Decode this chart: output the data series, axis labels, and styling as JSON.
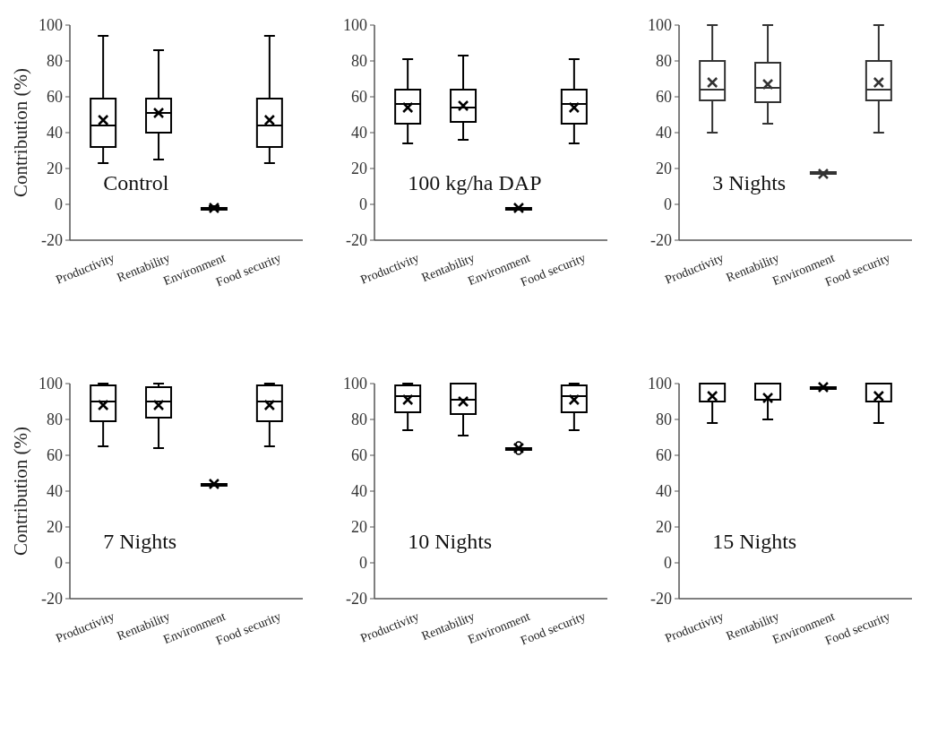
{
  "chart_data": [
    {
      "type": "box",
      "title": "Control",
      "ylabel": "Contribution (%)",
      "categories": [
        "Productivity",
        "Rentability",
        "Environment",
        "Food security"
      ],
      "ylim": [
        -20,
        100
      ],
      "yticks": [
        -20,
        0,
        20,
        40,
        60,
        80,
        100
      ],
      "color": "#000000",
      "boxes": [
        {
          "low": 23,
          "q1": 32,
          "median": 44,
          "q3": 59,
          "high": 94,
          "mean": 47
        },
        {
          "low": 25,
          "q1": 40,
          "median": 51,
          "q3": 59,
          "high": 86,
          "mean": 51
        },
        {
          "low": -3,
          "q1": -3,
          "median": -2,
          "q3": -2,
          "high": -1,
          "mean": -2
        },
        {
          "low": 23,
          "q1": 32,
          "median": 44,
          "q3": 59,
          "high": 94,
          "mean": 47
        }
      ]
    },
    {
      "type": "box",
      "title": "100 kg/ha DAP",
      "categories": [
        "Productivity",
        "Rentability",
        "Environment",
        "Food security"
      ],
      "ylim": [
        -20,
        100
      ],
      "yticks": [
        -20,
        0,
        20,
        40,
        60,
        80,
        100
      ],
      "color": "#000000",
      "boxes": [
        {
          "low": 34,
          "q1": 45,
          "median": 56,
          "q3": 64,
          "high": 81,
          "mean": 54
        },
        {
          "low": 36,
          "q1": 46,
          "median": 54,
          "q3": 64,
          "high": 83,
          "mean": 55
        },
        {
          "low": -3,
          "q1": -3,
          "median": -2,
          "q3": -2,
          "high": -2,
          "mean": -2
        },
        {
          "low": 34,
          "q1": 45,
          "median": 56,
          "q3": 64,
          "high": 81,
          "mean": 54
        }
      ]
    },
    {
      "type": "box",
      "title": "3 Nights",
      "categories": [
        "Productivity",
        "Rentability",
        "Environment",
        "Food security"
      ],
      "ylim": [
        -20,
        100
      ],
      "yticks": [
        -20,
        0,
        20,
        40,
        60,
        80,
        100
      ],
      "color": "#333333",
      "boxes": [
        {
          "low": 40,
          "q1": 58,
          "median": 64,
          "q3": 80,
          "high": 100,
          "mean": 68
        },
        {
          "low": 45,
          "q1": 57,
          "median": 65,
          "q3": 79,
          "high": 100,
          "mean": 67
        },
        {
          "low": 17,
          "q1": 17,
          "median": 18,
          "q3": 18,
          "high": 18,
          "mean": 17
        },
        {
          "low": 40,
          "q1": 58,
          "median": 64,
          "q3": 80,
          "high": 100,
          "mean": 68
        }
      ]
    },
    {
      "type": "box",
      "title": "7 Nights",
      "ylabel": "Contribution (%)",
      "categories": [
        "Productivity",
        "Rentability",
        "Environment",
        "Food security"
      ],
      "ylim": [
        -20,
        100
      ],
      "yticks": [
        -20,
        0,
        20,
        40,
        60,
        80,
        100
      ],
      "color": "#000000",
      "boxes": [
        {
          "low": 65,
          "q1": 79,
          "median": 90,
          "q3": 99,
          "high": 100,
          "mean": 88
        },
        {
          "low": 64,
          "q1": 81,
          "median": 90,
          "q3": 98,
          "high": 100,
          "mean": 88
        },
        {
          "low": 43,
          "q1": 43,
          "median": 44,
          "q3": 44,
          "high": 44,
          "mean": 44
        },
        {
          "low": 65,
          "q1": 79,
          "median": 90,
          "q3": 99,
          "high": 100,
          "mean": 88
        }
      ]
    },
    {
      "type": "box",
      "title": "10 Nights",
      "categories": [
        "Productivity",
        "Rentability",
        "Environment",
        "Food security"
      ],
      "ylim": [
        -20,
        100
      ],
      "yticks": [
        -20,
        0,
        20,
        40,
        60,
        80,
        100
      ],
      "color": "#000000",
      "boxes": [
        {
          "low": 74,
          "q1": 84,
          "median": 93,
          "q3": 99,
          "high": 100,
          "mean": 91
        },
        {
          "low": 71,
          "q1": 83,
          "median": 91,
          "q3": 100,
          "high": 100,
          "mean": 90
        },
        {
          "low": 63,
          "q1": 63,
          "median": 64,
          "q3": 64,
          "high": 64,
          "mean": 64,
          "outliers": [
            62,
            66
          ]
        },
        {
          "low": 74,
          "q1": 84,
          "median": 93,
          "q3": 99,
          "high": 100,
          "mean": 91
        }
      ]
    },
    {
      "type": "box",
      "title": "15 Nights",
      "categories": [
        "Productivity",
        "Rentability",
        "Environment",
        "Food security"
      ],
      "ylim": [
        -20,
        100
      ],
      "yticks": [
        -20,
        0,
        20,
        40,
        60,
        80,
        100
      ],
      "color": "#000000",
      "boxes": [
        {
          "low": 78,
          "q1": 90,
          "median": 100,
          "q3": 100,
          "high": 100,
          "mean": 93
        },
        {
          "low": 80,
          "q1": 91,
          "median": 100,
          "q3": 100,
          "high": 100,
          "mean": 92
        },
        {
          "low": 97,
          "q1": 97,
          "median": 98,
          "q3": 98,
          "high": 98,
          "mean": 98
        },
        {
          "low": 78,
          "q1": 90,
          "median": 100,
          "q3": 100,
          "high": 100,
          "mean": 93
        }
      ]
    }
  ]
}
